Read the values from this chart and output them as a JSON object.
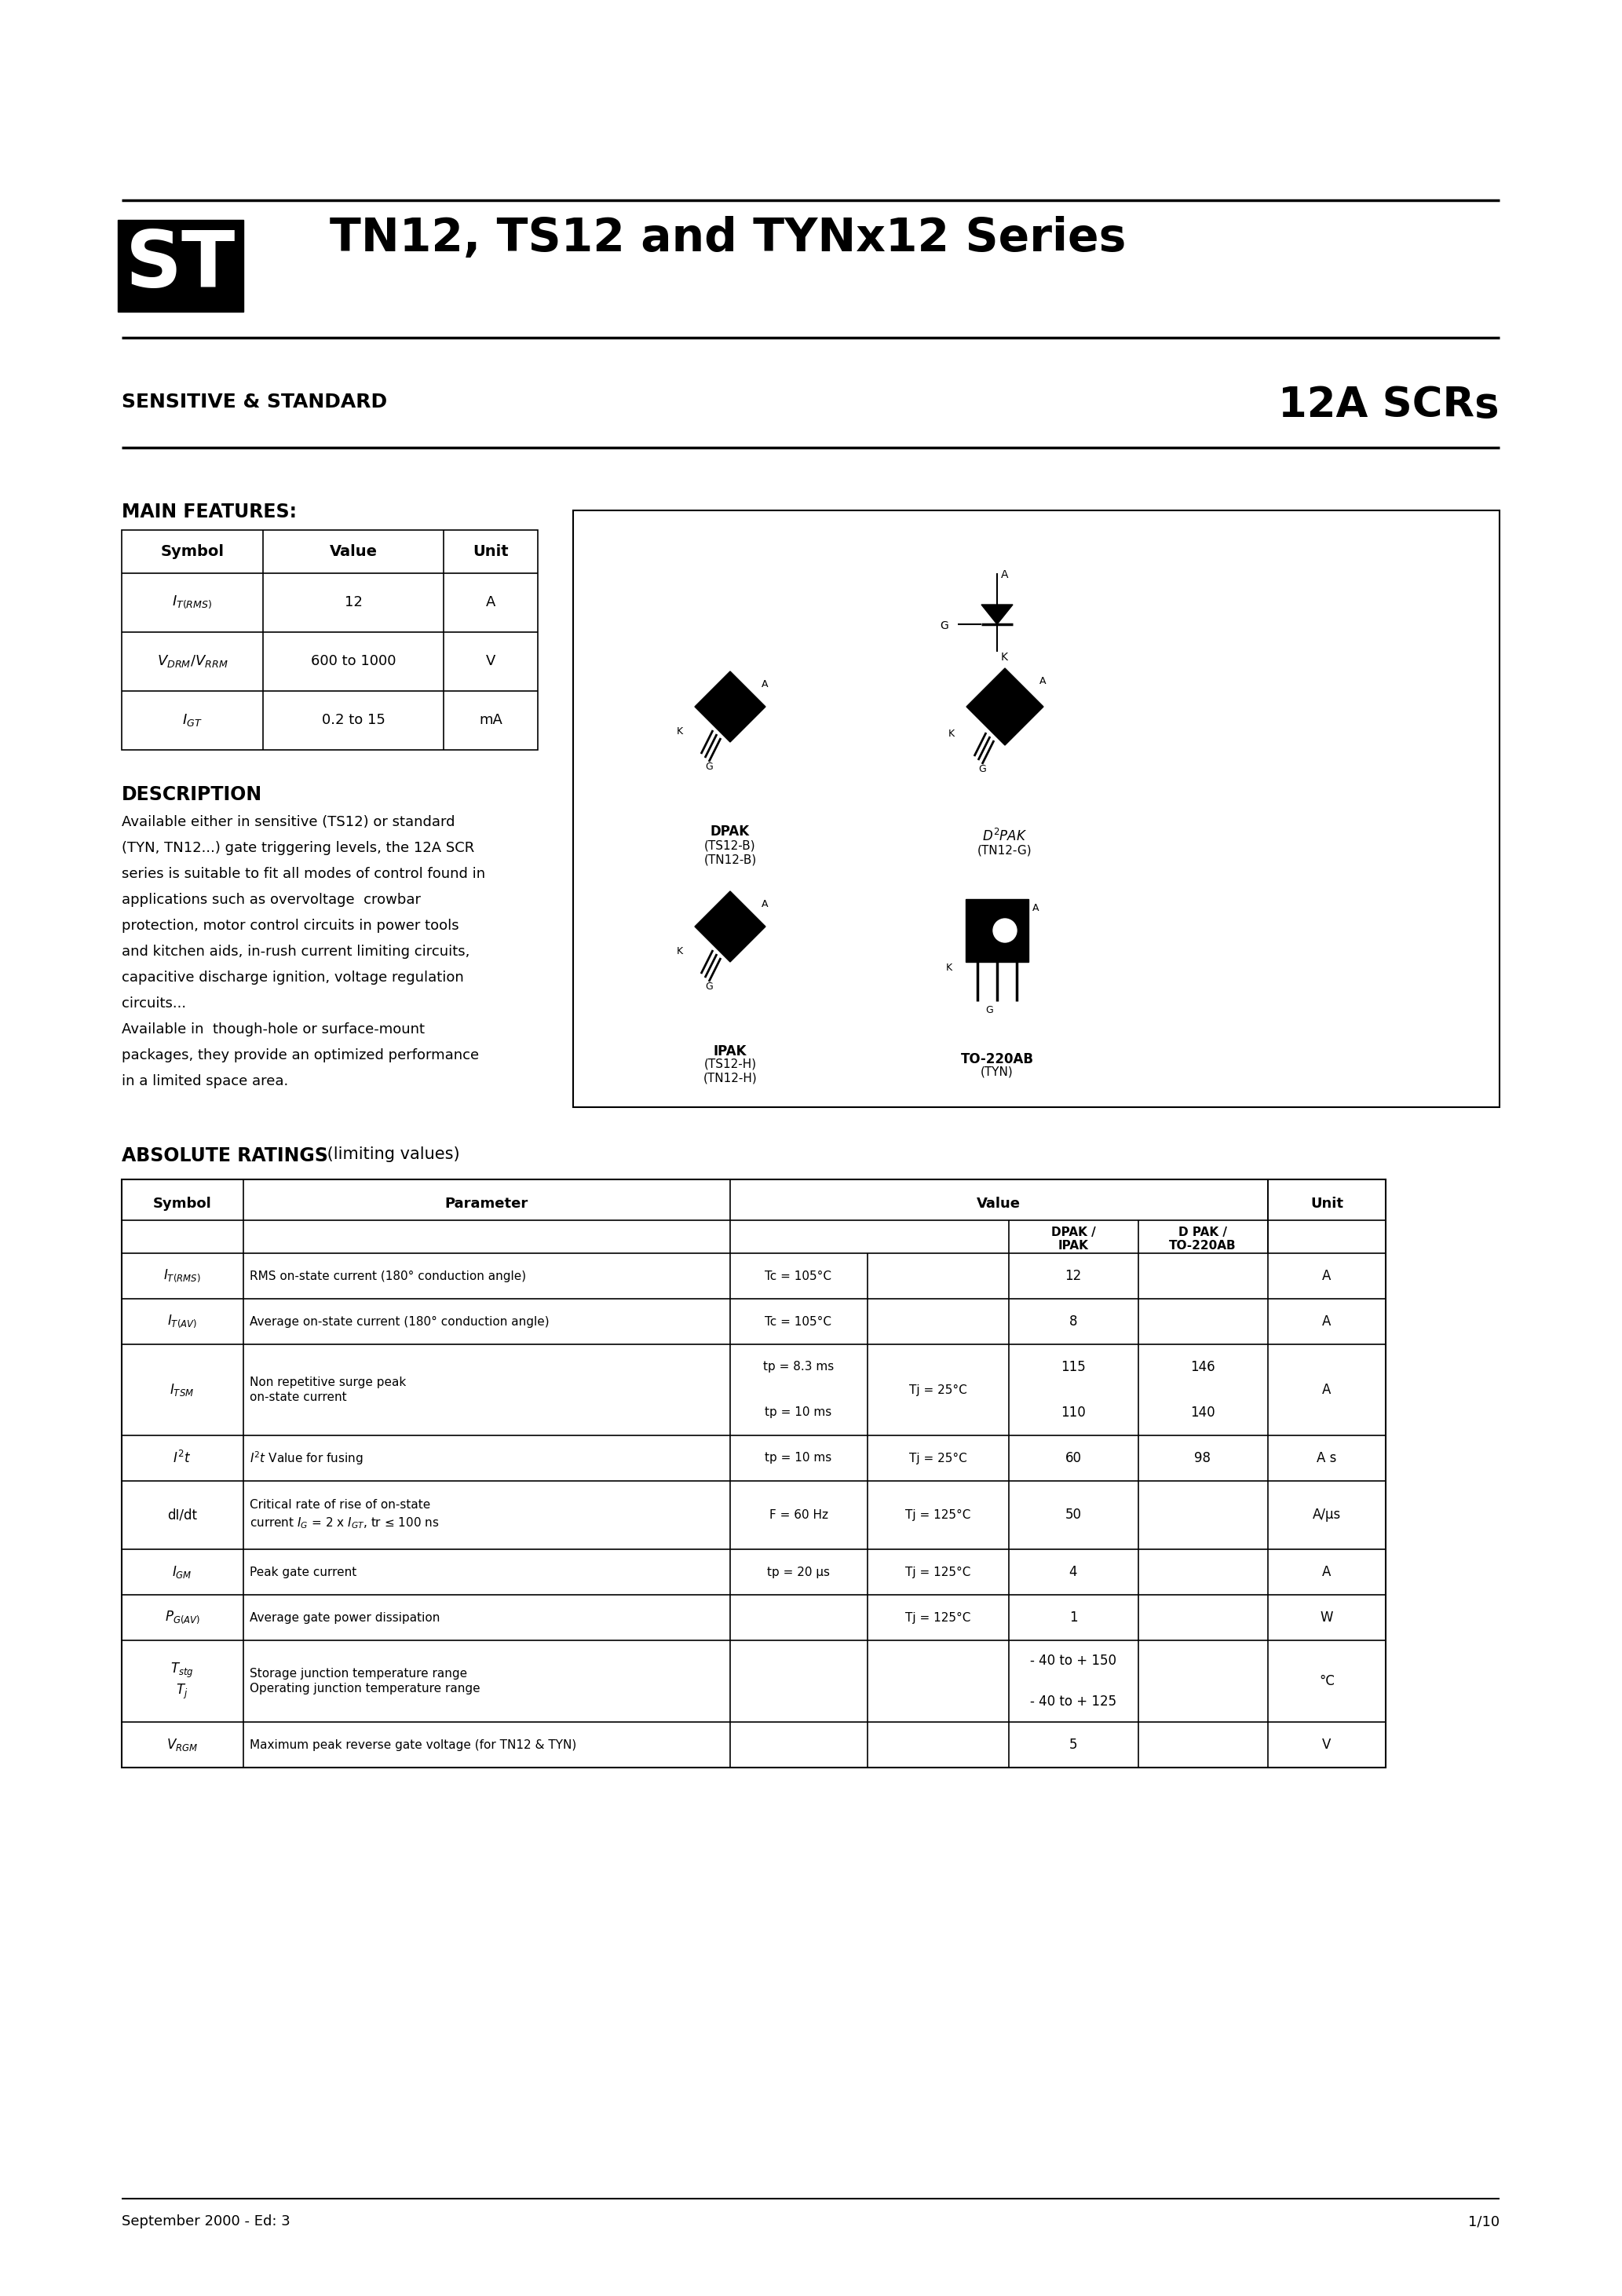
{
  "title": "TN12, TS12 and TYNx12 Series",
  "subtitle_left": "SENSITIVE & STANDARD",
  "subtitle_right": "12A SCRs",
  "bg_color": "#ffffff",
  "text_color": "#000000",
  "main_features_title": "MAIN FEATURES:",
  "features_table": {
    "headers": [
      "Symbol",
      "Value",
      "Unit"
    ],
    "rows": [
      [
        "I\\nT(RMS)",
        "12",
        "A"
      ],
      [
        "V\\nDRM/VRRM",
        "600 to 1000",
        "V"
      ],
      [
        "I\\nGT",
        "0.2 to 15",
        "mA"
      ]
    ]
  },
  "description_title": "DESCRIPTION",
  "description_text": "Available either in sensitive (TS12) or standard (TYN, TN12...) gate triggering levels, the 12A SCR series is suitable to fit all modes of control found in applications such as overvoltage crowbar protection, motor control circuits in power tools and kitchen aids, in-rush current limiting circuits, capacitive discharge ignition, voltage regulation circuits...\nAvailable in though-hole or surface-mount packages, they provide an optimized performance in a limited space area.",
  "abs_ratings_title": "ABSOLUTE RATINGS",
  "abs_ratings_subtitle": " (limiting values)",
  "abs_table": {
    "col_headers": [
      "Symbol",
      "Parameter",
      "",
      "",
      "Value",
      "",
      "Unit"
    ],
    "sub_headers_value": [
      "DPAK /\nIPAK",
      "D PAK /\nTO-220AB"
    ],
    "rows": [
      {
        "symbol": "I\\nT(RMS)",
        "parameter": "RMS on-state current (180° conduction angle)",
        "condition1": "Tc = 105°C",
        "condition2": "",
        "val1": "12",
        "val2": "",
        "unit": "A",
        "span": true
      },
      {
        "symbol": "I\\nT(AV)",
        "parameter": "Average on-state current (180° conduction angle)",
        "condition1": "Tc = 105°C",
        "condition2": "",
        "val1": "8",
        "val2": "",
        "unit": "A",
        "span": true
      },
      {
        "symbol": "I\\nTSM",
        "parameter": "Non repetitive surge peak\non-state current",
        "condition1": "tp = 8.3 ms",
        "condition2": "tp = 10 ms",
        "tj_cond": "Tj = 25°C",
        "val1": "115",
        "val2": "110",
        "val3": "146",
        "val4": "140",
        "unit": "A",
        "span": false
      },
      {
        "symbol": "I t",
        "parameter": "I t Value for fusing",
        "condition1": "tp = 10 ms",
        "tj_cond": "Tj = 25°C",
        "val1": "60",
        "val2": "98",
        "unit": "A s",
        "span": false
      },
      {
        "symbol": "dI/dt",
        "parameter": "Critical rate of rise of on-state current IG = 2 x IGT , tr ≤ 100 ns",
        "condition1": "F = 60 Hz",
        "tj_cond": "Tj = 125°C",
        "val1": "50",
        "val2": "",
        "unit": "A/μs",
        "span": true
      },
      {
        "symbol": "I\\nGM",
        "parameter": "Peak gate current",
        "condition1": "tp = 20 μs",
        "tj_cond": "Tj = 125°C",
        "val1": "4",
        "val2": "",
        "unit": "A",
        "span": true
      },
      {
        "symbol": "P\\nG(AV)",
        "parameter": "Average gate power dissipation",
        "condition1": "",
        "tj_cond": "Tj = 125°C",
        "val1": "1",
        "val2": "",
        "unit": "W",
        "span": true
      },
      {
        "symbol": "T\\nstg\nTj",
        "parameter": "Storage junction temperature range\nOperating junction temperature range",
        "condition1": "",
        "tj_cond": "",
        "val1": "- 40 to + 150\n- 40 to + 125",
        "val2": "",
        "unit": "°C",
        "span": true
      },
      {
        "symbol": "V\\nRGM",
        "parameter": "Maximum peak reverse gate voltage (for TN12 & TYN)",
        "condition1": "",
        "tj_cond": "",
        "val1": "5",
        "val2": "",
        "unit": "V",
        "span": true
      }
    ]
  },
  "footer_left": "September 2000 - Ed: 3",
  "footer_right": "1/10"
}
